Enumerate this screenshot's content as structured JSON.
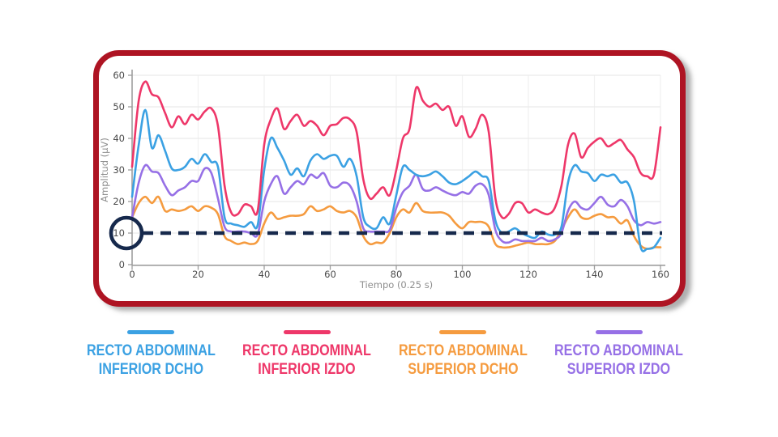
{
  "card": {
    "border_color": "#ae1423",
    "background": "#ffffff"
  },
  "chart": {
    "y_axis_title": "Amplitud (µV)",
    "x_axis_title": "Tiempo (0.25 s)",
    "y_ticks": [
      0,
      10,
      20,
      30,
      40,
      50,
      60
    ],
    "x_ticks": [
      0,
      20,
      40,
      60,
      80,
      100,
      120,
      140,
      160
    ],
    "axis_color": "#9e9e9e",
    "grid_color": "#ebebeb",
    "tick_label_color": "#4a4a4a",
    "axis_title_color": "#8e8e8e",
    "threshold": {
      "value": 10,
      "color": "#16294c",
      "style": "dashed",
      "circled_tick": "10"
    }
  },
  "chart_data": {
    "type": "line",
    "title": "",
    "xlabel": "Tiempo (0.25 s)",
    "ylabel": "Amplitud (µV)",
    "xlim": [
      0,
      160
    ],
    "ylim": [
      0,
      60
    ],
    "grid": true,
    "legend_position": "bottom",
    "x": [
      0,
      2,
      4,
      6,
      8,
      10,
      12,
      14,
      16,
      18,
      20,
      22,
      24,
      26,
      28,
      30,
      32,
      34,
      36,
      38,
      40,
      42,
      44,
      46,
      48,
      50,
      52,
      54,
      56,
      58,
      60,
      62,
      64,
      66,
      68,
      70,
      72,
      74,
      76,
      78,
      80,
      82,
      84,
      86,
      88,
      90,
      92,
      94,
      96,
      98,
      100,
      102,
      104,
      106,
      108,
      110,
      112,
      114,
      116,
      118,
      120,
      122,
      124,
      126,
      128,
      130,
      132,
      134,
      136,
      138,
      140,
      142,
      144,
      146,
      148,
      150,
      152,
      154,
      156,
      158,
      160
    ],
    "threshold_line": {
      "y": 10,
      "color": "#16294c",
      "dashed": true
    },
    "annotations": [
      {
        "type": "circle",
        "target": "y-axis tick 10",
        "color": "#16294c"
      }
    ],
    "series": [
      {
        "name": "RECTO ABDOMINAL INFERIOR DCHO",
        "color": "#3ba1e3",
        "values": [
          21.5,
          38,
          49,
          37,
          41,
          36,
          30.5,
          30,
          31,
          33.5,
          32,
          35,
          32.5,
          31,
          15,
          13,
          12.5,
          12,
          13.5,
          12.5,
          30,
          40,
          37,
          33,
          28.5,
          30.5,
          28,
          33,
          35,
          33.5,
          34.5,
          34.5,
          31,
          33.5,
          28,
          15,
          12,
          11.5,
          15,
          13,
          22,
          31,
          30,
          28.5,
          28,
          28.5,
          29.5,
          28,
          26,
          25.5,
          26.5,
          28,
          29.5,
          28,
          26.5,
          14,
          10,
          10.5,
          11.5,
          10,
          9,
          8.5,
          10.5,
          9.5,
          9.5,
          12,
          26,
          31.5,
          29.5,
          29,
          26.5,
          28.5,
          28,
          28.5,
          26,
          26,
          20,
          5.5,
          5,
          5.5,
          8.5
        ]
      },
      {
        "name": "RECTO ABDOMINAL INFERIOR IZDO",
        "color": "#ee3769",
        "values": [
          31,
          52,
          58,
          54,
          53,
          48,
          43.5,
          47,
          44.5,
          47.5,
          46,
          48.5,
          49.5,
          44,
          25,
          16.5,
          16,
          19,
          18.5,
          17,
          38,
          46,
          49.5,
          43,
          45.5,
          47.5,
          44,
          45.5,
          44,
          41,
          44,
          44.5,
          46.5,
          46,
          42,
          27,
          21,
          22.5,
          24.5,
          22,
          30,
          40,
          43,
          56,
          52,
          50,
          51,
          49,
          50,
          44,
          47,
          40.5,
          43,
          47.5,
          42,
          21,
          15,
          16,
          19.5,
          19.5,
          16.5,
          17.5,
          16.5,
          16,
          18,
          25,
          38,
          41.5,
          34,
          37,
          39,
          40,
          37.5,
          38.5,
          39.5,
          36.5,
          34,
          29,
          28,
          28.5,
          43.5
        ]
      },
      {
        "name": "RECTO ABDOMINAL SUPERIOR DCHO",
        "color": "#f59b3f",
        "values": [
          15,
          19.5,
          21.5,
          19.5,
          21.5,
          17,
          17.5,
          17,
          17.5,
          18.5,
          17,
          18.5,
          18,
          16,
          9,
          7.5,
          6.5,
          7,
          6.5,
          7.5,
          13,
          16.5,
          14.5,
          15,
          15.5,
          15.5,
          16,
          18.5,
          17,
          17.5,
          18.5,
          17,
          16.5,
          17,
          15,
          9,
          6.5,
          7,
          7,
          10,
          15,
          17.5,
          16.5,
          19.5,
          17,
          16.5,
          16.5,
          16.5,
          15.5,
          13,
          11.5,
          13.5,
          13.5,
          13.5,
          12,
          6.5,
          5.5,
          5.5,
          6,
          6.5,
          7,
          6.5,
          6.5,
          6.5,
          7.5,
          11,
          15,
          17.5,
          15,
          14.5,
          15.5,
          16,
          15,
          15,
          13,
          14,
          9,
          6,
          5,
          5.5,
          5.5
        ]
      },
      {
        "name": "RECTO ABDOMINAL SUPERIOR IZDO",
        "color": "#9670e6",
        "values": [
          15,
          26,
          31.5,
          29.5,
          29,
          25,
          22,
          23.5,
          24.5,
          26.5,
          26.5,
          30.5,
          29,
          21,
          12,
          10.5,
          10.5,
          10.5,
          10,
          9.5,
          20,
          25.5,
          28,
          22.5,
          24.5,
          26.5,
          25.5,
          28.5,
          27.5,
          29,
          25,
          24.5,
          26,
          25,
          20,
          11.5,
          10.5,
          10.5,
          10.5,
          11,
          18,
          23,
          25,
          28.5,
          24,
          23.5,
          24.5,
          23.5,
          22.5,
          22,
          23,
          22.5,
          25,
          25.5,
          22,
          11,
          7.5,
          7,
          8,
          7.5,
          7.5,
          7.5,
          8.5,
          7.5,
          8,
          10,
          17,
          20,
          18,
          17.5,
          19.5,
          21.5,
          19,
          18.5,
          20.5,
          18.5,
          14,
          12.5,
          13.5,
          13,
          13.5
        ]
      }
    ]
  },
  "legend": {
    "items": [
      {
        "line1": "RECTO ABDOMINAL",
        "line2": "INFERIOR DCHO",
        "color": "#3ba1e3"
      },
      {
        "line1": "RECTO ABDOMINAL",
        "line2": "INFERIOR IZDO",
        "color": "#ee3769"
      },
      {
        "line1": "RECTO ABDOMINAL",
        "line2": "SUPERIOR DCHO",
        "color": "#f59b3f"
      },
      {
        "line1": "RECTO ABDOMINAL",
        "line2": "SUPERIOR IZDO",
        "color": "#9670e6"
      }
    ]
  }
}
